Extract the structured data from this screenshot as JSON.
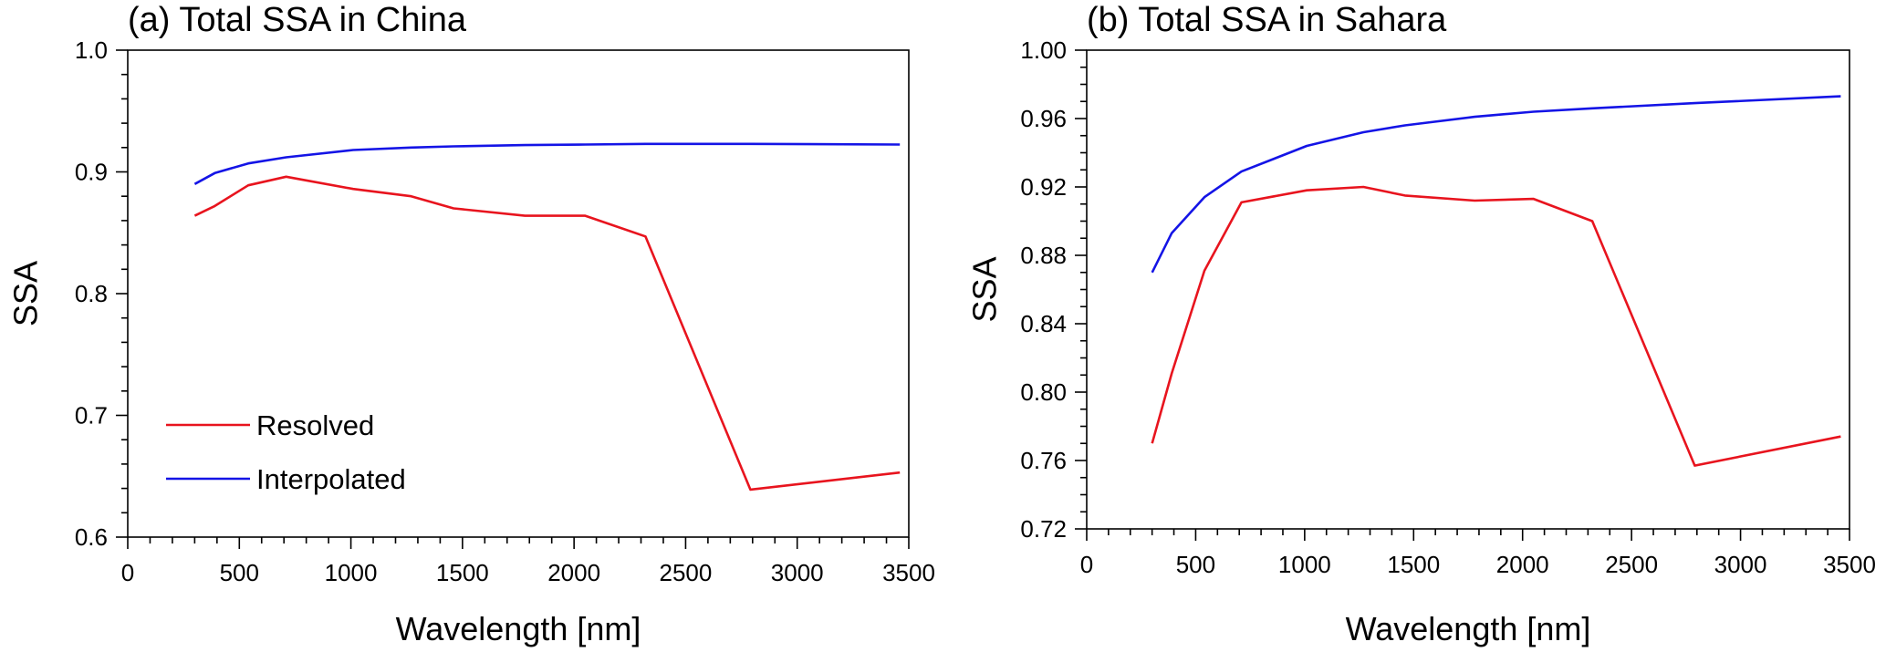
{
  "chart_data": [
    {
      "type": "line",
      "title": "(a) Total SSA in China",
      "xlabel": "Wavelength [nm]",
      "ylabel": "SSA",
      "xlim": [
        0,
        3500
      ],
      "ylim": [
        0.6,
        1.0
      ],
      "xticks": [
        0,
        500,
        1000,
        1500,
        2000,
        2500,
        3000,
        3500
      ],
      "xtick_labels": [
        "0",
        "500",
        "1000",
        "1500",
        "2000",
        "2500",
        "3000",
        "3500"
      ],
      "x_minor_step": 100,
      "yticks": [
        0.6,
        0.7,
        0.8,
        0.9,
        1.0
      ],
      "ytick_labels": [
        "0.6",
        "0.7",
        "0.8",
        "0.9",
        "1.0"
      ],
      "y_minor_step": 0.02,
      "grid": false,
      "legend": {
        "placement": "lower-left",
        "entries": [
          "Resolved",
          "Interpolated"
        ]
      },
      "series": [
        {
          "name": "Resolved",
          "color": "#e8141e",
          "x": [
            300,
            390,
            540,
            710,
            1010,
            1270,
            1460,
            1780,
            2050,
            2320,
            2790,
            3460
          ],
          "y": [
            0.864,
            0.872,
            0.889,
            0.896,
            0.886,
            0.88,
            0.87,
            0.864,
            0.864,
            0.847,
            0.639,
            0.653
          ]
        },
        {
          "name": "Interpolated",
          "color": "#1414e6",
          "x": [
            300,
            390,
            540,
            710,
            1010,
            1270,
            1460,
            1780,
            2050,
            2320,
            2790,
            3460
          ],
          "y": [
            0.89,
            0.899,
            0.907,
            0.912,
            0.918,
            0.92,
            0.921,
            0.922,
            0.9225,
            0.923,
            0.923,
            0.9225
          ]
        }
      ]
    },
    {
      "type": "line",
      "title": "(b) Total SSA in Sahara",
      "xlabel": "Wavelength [nm]",
      "ylabel": "SSA",
      "xlim": [
        0,
        3500
      ],
      "ylim": [
        0.72,
        1.0
      ],
      "xticks": [
        0,
        500,
        1000,
        1500,
        2000,
        2500,
        3000,
        3500
      ],
      "xtick_labels": [
        "0",
        "500",
        "1000",
        "1500",
        "2000",
        "2500",
        "3000",
        "3500"
      ],
      "x_minor_step": 100,
      "yticks": [
        0.72,
        0.76,
        0.8,
        0.84,
        0.88,
        0.92,
        0.96,
        1.0
      ],
      "ytick_labels": [
        "0.72",
        "0.76",
        "0.80",
        "0.84",
        "0.88",
        "0.92",
        "0.96",
        "1.00"
      ],
      "y_minor_step": 0.01,
      "grid": false,
      "series": [
        {
          "name": "Resolved",
          "color": "#e8141e",
          "x": [
            300,
            390,
            540,
            710,
            1010,
            1270,
            1460,
            1780,
            2050,
            2320,
            2790,
            3460
          ],
          "y": [
            0.77,
            0.811,
            0.871,
            0.911,
            0.918,
            0.92,
            0.915,
            0.912,
            0.913,
            0.9,
            0.757,
            0.774
          ]
        },
        {
          "name": "Interpolated",
          "color": "#1414e6",
          "x": [
            300,
            390,
            540,
            710,
            1010,
            1270,
            1460,
            1780,
            2050,
            2320,
            2790,
            3460
          ],
          "y": [
            0.87,
            0.893,
            0.914,
            0.929,
            0.944,
            0.952,
            0.956,
            0.961,
            0.964,
            0.966,
            0.969,
            0.973
          ]
        }
      ]
    }
  ]
}
